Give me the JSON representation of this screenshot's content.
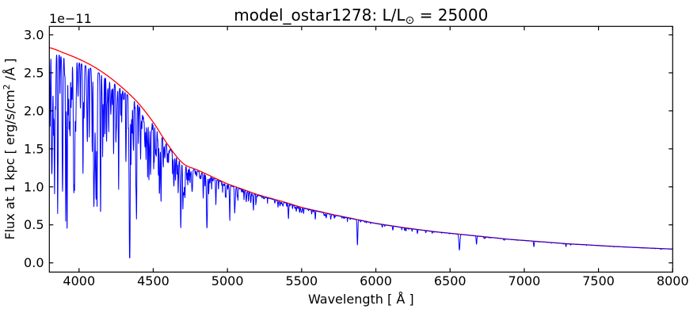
{
  "figure": {
    "title": {
      "prefix": "model_ostar1278: L/L",
      "sub": "⊙",
      "suffix": " = 25000"
    },
    "xlabel": "Wavelength [ Å ]",
    "ylabel": {
      "prefix": "Flux at 1 kpc [ erg/s/cm",
      "sup": "2",
      "suffix": " /Å ]"
    },
    "offset_text": "1e−11",
    "colors": {
      "spectrum": "#0000ff",
      "continuum": "#ff0000",
      "axes": "#000000",
      "background": "#ffffff"
    }
  },
  "chart_data": {
    "type": "line",
    "title": "model_ostar1278: L/L⊙ = 25000",
    "xlabel": "Wavelength [ Å ]",
    "ylabel": "Flux at 1 kpc [ erg/s/cm^2 /Å ]",
    "y_scale_offset": "1e-11",
    "xlim": [
      3800,
      8000
    ],
    "ylim": [
      -0.121,
      3.111
    ],
    "grid": false,
    "legend": "none",
    "x_ticks": [
      4000,
      4500,
      5000,
      5500,
      6000,
      6500,
      7000,
      7500,
      8000
    ],
    "x_tick_labels": [
      "4000",
      "4500",
      "5000",
      "5500",
      "6000",
      "6500",
      "7000",
      "7500",
      "8000"
    ],
    "y_ticks": [
      0.0,
      0.5,
      1.0,
      1.5,
      2.0,
      2.5,
      3.0
    ],
    "y_tick_labels": [
      "0.0",
      "0.5",
      "1.0",
      "1.5",
      "2.0",
      "2.5",
      "3.0"
    ],
    "series": [
      {
        "name": "continuum_fit",
        "color": "#ff0000",
        "x": [
          3800,
          3900,
          4000,
          4100,
          4200,
          4300,
          4400,
          4500,
          4600,
          4700,
          4800,
          4900,
          5000,
          5100,
          5200,
          5300,
          5400,
          5500,
          5600,
          5700,
          5800,
          5900,
          6000,
          6100,
          6200,
          6300,
          6400,
          6500,
          6600,
          6700,
          6800,
          6900,
          7000,
          7100,
          7200,
          7300,
          7400,
          7500,
          7600,
          7700,
          7800,
          7900,
          8000
        ],
        "y": [
          2.83,
          2.76,
          2.68,
          2.58,
          2.45,
          2.29,
          2.1,
          1.85,
          1.55,
          1.31,
          1.22,
          1.13,
          1.04,
          0.97,
          0.9,
          0.845,
          0.79,
          0.73,
          0.685,
          0.64,
          0.6,
          0.56,
          0.52,
          0.49,
          0.46,
          0.435,
          0.41,
          0.39,
          0.37,
          0.35,
          0.33,
          0.31,
          0.295,
          0.28,
          0.265,
          0.25,
          0.24,
          0.228,
          0.217,
          0.207,
          0.198,
          0.19,
          0.182
        ]
      },
      {
        "name": "spectrum",
        "color": "#0000ff",
        "model": "continuum_fit multiplied by (1 - sum of gaussian absorption lines)",
        "absorption_lines": [
          {
            "wl": 3815,
            "depth": 0.45,
            "sigma": 1.8
          },
          {
            "wl": 3820,
            "depth": 0.35,
            "sigma": 2.0
          },
          {
            "wl": 3835,
            "depth": 0.65,
            "sigma": 2.5
          },
          {
            "wl": 3856,
            "depth": 0.4,
            "sigma": 1.8
          },
          {
            "wl": 3889,
            "depth": 0.6,
            "sigma": 2.5
          },
          {
            "wl": 3920,
            "depth": 0.33,
            "sigma": 1.8
          },
          {
            "wl": 3933,
            "depth": 0.3,
            "sigma": 1.5
          },
          {
            "wl": 3964,
            "depth": 0.3,
            "sigma": 2.0
          },
          {
            "wl": 3970,
            "depth": 0.6,
            "sigma": 2.8
          },
          {
            "wl": 4009,
            "depth": 0.22,
            "sigma": 1.8
          },
          {
            "wl": 4026,
            "depth": 0.42,
            "sigma": 2.2
          },
          {
            "wl": 4069,
            "depth": 0.35,
            "sigma": 1.8
          },
          {
            "wl": 4089,
            "depth": 0.38,
            "sigma": 1.8
          },
          {
            "wl": 4101,
            "depth": 0.6,
            "sigma": 3.2
          },
          {
            "wl": 4116,
            "depth": 0.3,
            "sigma": 1.8
          },
          {
            "wl": 4121,
            "depth": 0.28,
            "sigma": 2.0
          },
          {
            "wl": 4144,
            "depth": 0.26,
            "sigma": 2.0
          },
          {
            "wl": 4200,
            "depth": 0.28,
            "sigma": 2.0
          },
          {
            "wl": 4233,
            "depth": 0.35,
            "sigma": 1.8
          },
          {
            "wl": 4267,
            "depth": 0.32,
            "sigma": 1.5
          },
          {
            "wl": 4317,
            "depth": 0.3,
            "sigma": 1.8
          },
          {
            "wl": 4340,
            "depth": 0.6,
            "sigma": 3.2
          },
          {
            "wl": 4350,
            "depth": 0.35,
            "sigma": 1.8
          },
          {
            "wl": 4387,
            "depth": 0.38,
            "sigma": 2.2
          },
          {
            "wl": 4415,
            "depth": 0.3,
            "sigma": 1.8
          },
          {
            "wl": 4471,
            "depth": 0.42,
            "sigma": 2.2
          },
          {
            "wl": 4481,
            "depth": 0.25,
            "sigma": 1.5
          },
          {
            "wl": 4542,
            "depth": 0.26,
            "sigma": 2.0
          },
          {
            "wl": 4553,
            "depth": 0.3,
            "sigma": 1.8
          },
          {
            "wl": 4568,
            "depth": 0.22,
            "sigma": 1.8
          },
          {
            "wl": 4640,
            "depth": 0.25,
            "sigma": 2.2
          },
          {
            "wl": 4650,
            "depth": 0.22,
            "sigma": 2.0
          },
          {
            "wl": 4686,
            "depth": 0.3,
            "sigma": 2.2
          },
          {
            "wl": 4713,
            "depth": 0.22,
            "sigma": 2.0
          },
          {
            "wl": 4861,
            "depth": 0.48,
            "sigma": 3.2
          },
          {
            "wl": 4922,
            "depth": 0.3,
            "sigma": 2.2
          },
          {
            "wl": 5016,
            "depth": 0.28,
            "sigma": 2.0
          },
          {
            "wl": 5048,
            "depth": 0.14,
            "sigma": 1.8
          },
          {
            "wl": 5411,
            "depth": 0.25,
            "sigma": 2.2
          },
          {
            "wl": 5592,
            "depth": 0.16,
            "sigma": 1.8
          },
          {
            "wl": 5696,
            "depth": 0.1,
            "sigma": 1.8
          },
          {
            "wl": 5876,
            "depth": 0.58,
            "sigma": 2.5
          },
          {
            "wl": 6203,
            "depth": 0.08,
            "sigma": 1.8
          },
          {
            "wl": 6280,
            "depth": 0.07,
            "sigma": 1.5
          },
          {
            "wl": 6380,
            "depth": 0.06,
            "sigma": 1.5
          },
          {
            "wl": 6563,
            "depth": 0.55,
            "sigma": 3.5
          },
          {
            "wl": 6678,
            "depth": 0.28,
            "sigma": 2.2
          },
          {
            "wl": 7065,
            "depth": 0.25,
            "sigma": 2.2
          },
          {
            "wl": 7281,
            "depth": 0.15,
            "sigma": 2.0
          }
        ],
        "line_forest": {
          "seed": 7,
          "sigma": [
            0.9,
            2.5
          ],
          "bands": [
            {
              "range": [
                3800,
                4000
              ],
              "count": 40,
              "depth": [
                0.05,
                0.35
              ]
            },
            {
              "range": [
                4000,
                4200
              ],
              "count": 38,
              "depth": [
                0.05,
                0.32
              ]
            },
            {
              "range": [
                4200,
                4400
              ],
              "count": 40,
              "depth": [
                0.04,
                0.3
              ]
            },
            {
              "range": [
                4400,
                4600
              ],
              "count": 38,
              "depth": [
                0.04,
                0.28
              ]
            },
            {
              "range": [
                4600,
                4800
              ],
              "count": 30,
              "depth": [
                0.04,
                0.22
              ]
            },
            {
              "range": [
                4800,
                5000
              ],
              "count": 26,
              "depth": [
                0.03,
                0.2
              ]
            },
            {
              "range": [
                5000,
                5200
              ],
              "count": 22,
              "depth": [
                0.03,
                0.16
              ]
            },
            {
              "range": [
                5200,
                5500
              ],
              "count": 22,
              "depth": [
                0.025,
                0.12
              ]
            },
            {
              "range": [
                5500,
                5900
              ],
              "count": 18,
              "depth": [
                0.02,
                0.1
              ]
            },
            {
              "range": [
                5900,
                6400
              ],
              "count": 14,
              "depth": [
                0.02,
                0.08
              ]
            },
            {
              "range": [
                6400,
                7000
              ],
              "count": 12,
              "depth": [
                0.015,
                0.07
              ]
            },
            {
              "range": [
                7000,
                8000
              ],
              "count": 14,
              "depth": [
                0.012,
                0.06
              ]
            }
          ],
          "blanketing": {
            "base": 0.02,
            "decay_scale": 1600
          }
        }
      }
    ]
  }
}
